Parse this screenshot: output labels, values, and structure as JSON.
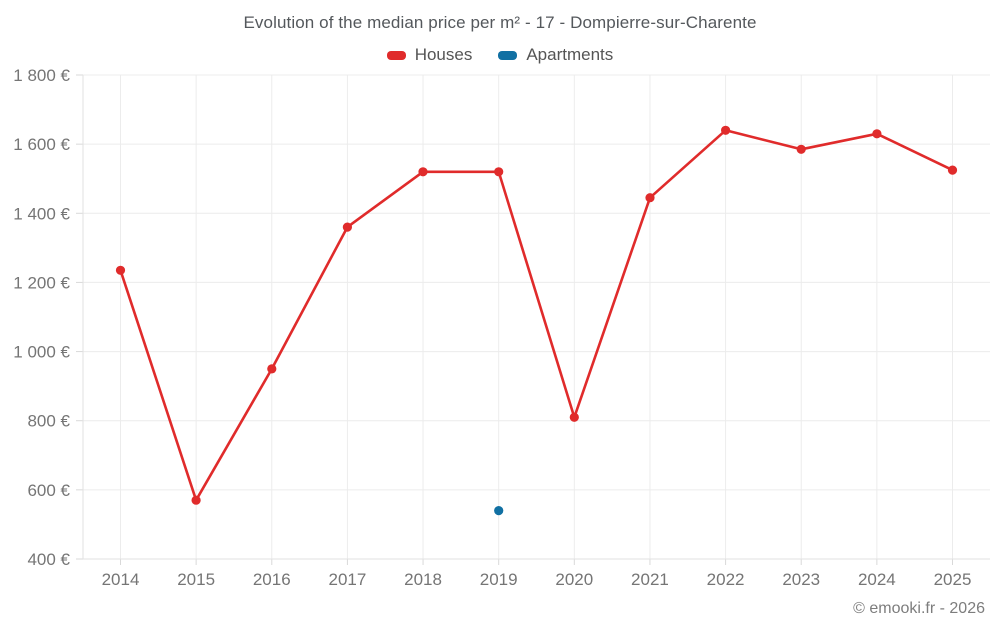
{
  "title": "Evolution of the median price per m² - 17 - Dompierre-sur-Charente",
  "footer": "© emooki.fr - 2026",
  "colors": {
    "houses": "#e02b2b",
    "apartments": "#1170a3",
    "gridline": "#ececec",
    "axis_line": "#e2e2e2",
    "tick_mark": "#d9d9d9",
    "tick_text": "#757575",
    "title_text": "#54585c",
    "legend_text": "#555555",
    "footer_text": "#7d7d7d",
    "background": "#ffffff"
  },
  "legend": {
    "items": [
      {
        "label": "Houses",
        "color": "#e02b2b"
      },
      {
        "label": "Apartments",
        "color": "#1170a3"
      }
    ]
  },
  "chart_data": {
    "type": "line",
    "title": "Evolution of the median price per m² - 17 - Dompierre-sur-Charente",
    "x": [
      2014,
      2015,
      2016,
      2017,
      2018,
      2019,
      2020,
      2021,
      2022,
      2023,
      2024,
      2025
    ],
    "series": [
      {
        "name": "Houses",
        "color": "#e02b2b",
        "values": [
          1235,
          570,
          950,
          1360,
          1520,
          1520,
          810,
          1445,
          1640,
          1585,
          1630,
          1525
        ]
      },
      {
        "name": "Apartments",
        "color": "#1170a3",
        "values": [
          null,
          null,
          null,
          null,
          null,
          540,
          null,
          null,
          null,
          null,
          null,
          null
        ]
      }
    ],
    "xlabel": "",
    "ylabel": "",
    "ylim": [
      400,
      1800
    ],
    "ytick_step": 200,
    "ytick_suffix": " €",
    "grid": true,
    "legend_position": "top"
  }
}
